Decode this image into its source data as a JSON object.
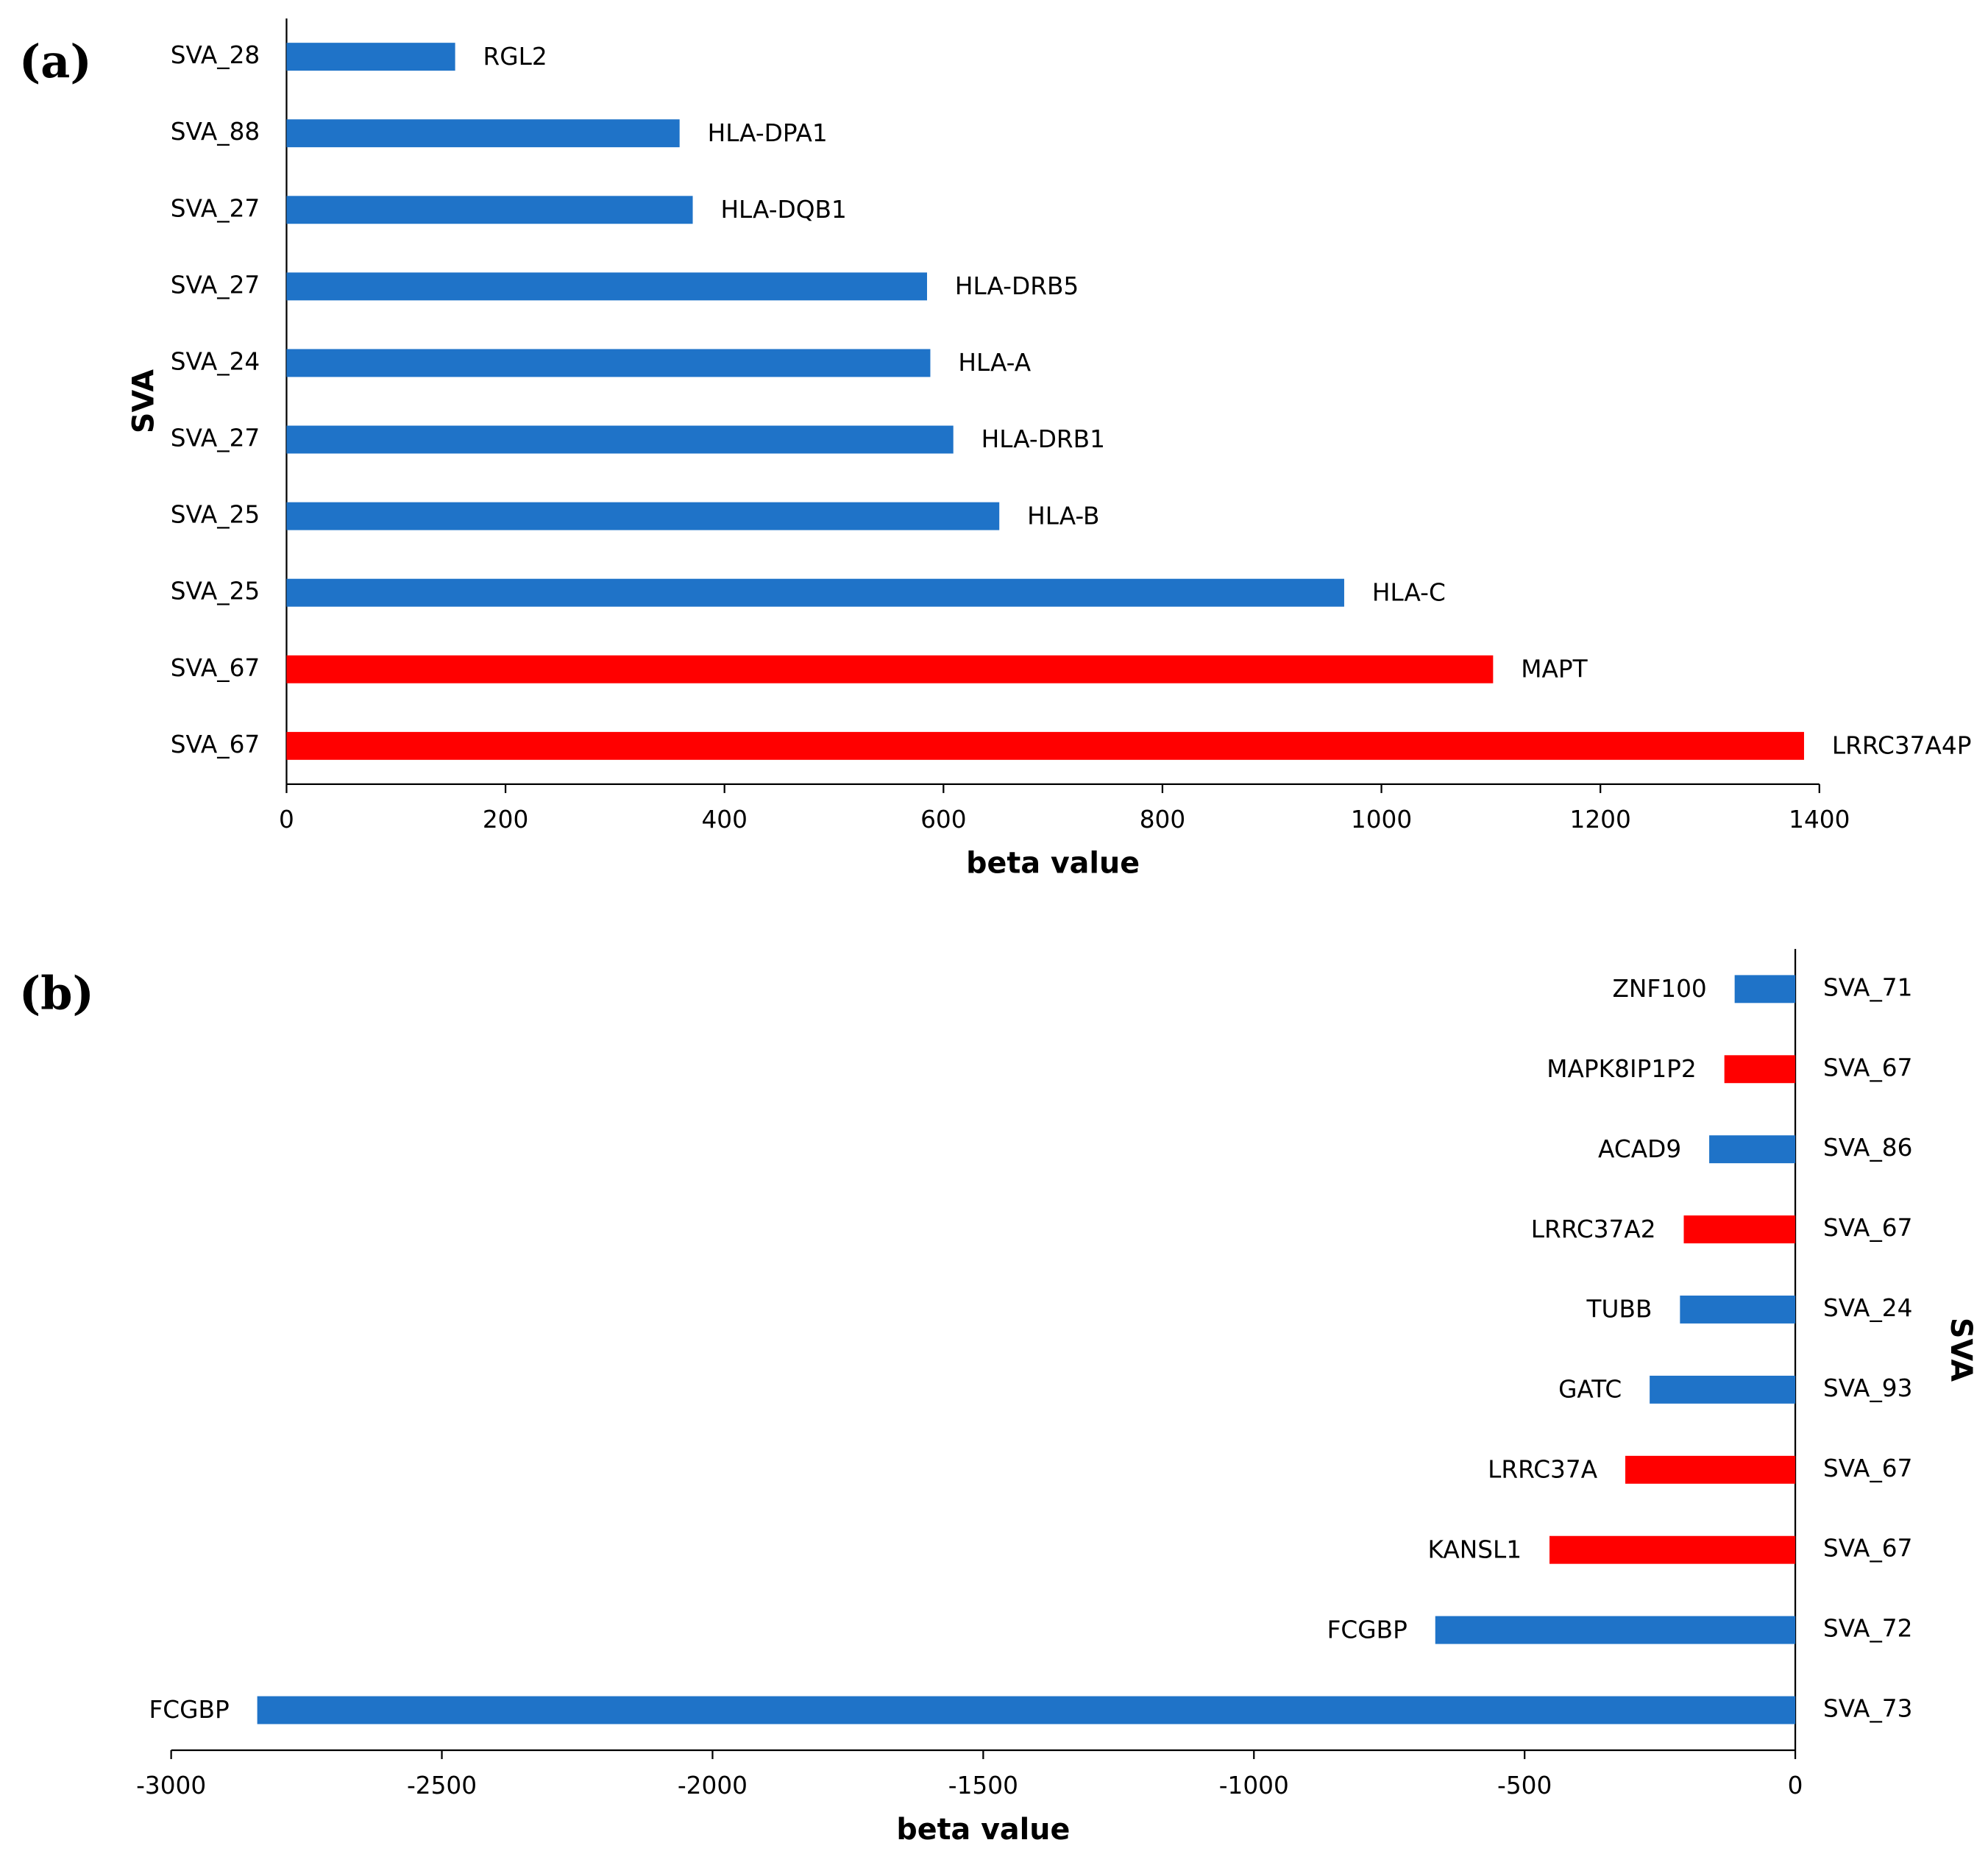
{
  "chart_data": [
    {
      "type": "bar",
      "orientation": "horizontal",
      "panel_label": "(a)",
      "x_label": "beta value",
      "y_label": "SVA",
      "y_axis_position": "left",
      "categories": [
        "SVA_28",
        "SVA_88",
        "SVA_27",
        "SVA_27",
        "SVA_24",
        "SVA_27",
        "SVA_25",
        "SVA_25",
        "SVA_67",
        "SVA_67"
      ],
      "bar_labels": [
        "RGL2",
        "HLA-DPA1",
        "HLA-DQB1",
        "HLA-DRB5",
        "HLA-A",
        "HLA-DRB1",
        "HLA-B",
        "HLA-C",
        "MAPT",
        "LRRC37A4P"
      ],
      "values": [
        154,
        359,
        371,
        585,
        588,
        609,
        651,
        966,
        1102,
        1386
      ],
      "colors": [
        "#1f73c8",
        "#1f73c8",
        "#1f73c8",
        "#1f73c8",
        "#1f73c8",
        "#1f73c8",
        "#1f73c8",
        "#1f73c8",
        "#ff0000",
        "#ff0000"
      ],
      "xlim": [
        0,
        1400
      ],
      "xticks": [
        0,
        200,
        400,
        600,
        800,
        1000,
        1200,
        1400
      ]
    },
    {
      "type": "bar",
      "orientation": "horizontal",
      "panel_label": "(b)",
      "x_label": "beta value",
      "y_label": "SVA",
      "y_axis_position": "right",
      "categories": [
        "SVA_71",
        "SVA_67",
        "SVA_86",
        "SVA_67",
        "SVA_24",
        "SVA_93",
        "SVA_67",
        "SVA_67",
        "SVA_72",
        "SVA_73"
      ],
      "bar_labels": [
        "ZNF100",
        "MAPK8IP1P2",
        "ACAD9",
        "LRRC37A2",
        "TUBB",
        "GATC",
        "LRRC37A",
        "KANSL1",
        "FCGBP",
        "FCGBP"
      ],
      "values": [
        -112,
        -131,
        -159,
        -206,
        -213,
        -269,
        -314,
        -454,
        -665,
        -2841
      ],
      "colors": [
        "#1f73c8",
        "#ff0000",
        "#1f73c8",
        "#ff0000",
        "#1f73c8",
        "#1f73c8",
        "#ff0000",
        "#ff0000",
        "#1f73c8",
        "#1f73c8"
      ],
      "xlim": [
        -3000,
        0
      ],
      "xticks": [
        -3000,
        -2500,
        -2000,
        -1500,
        -1000,
        -500,
        0
      ]
    }
  ]
}
